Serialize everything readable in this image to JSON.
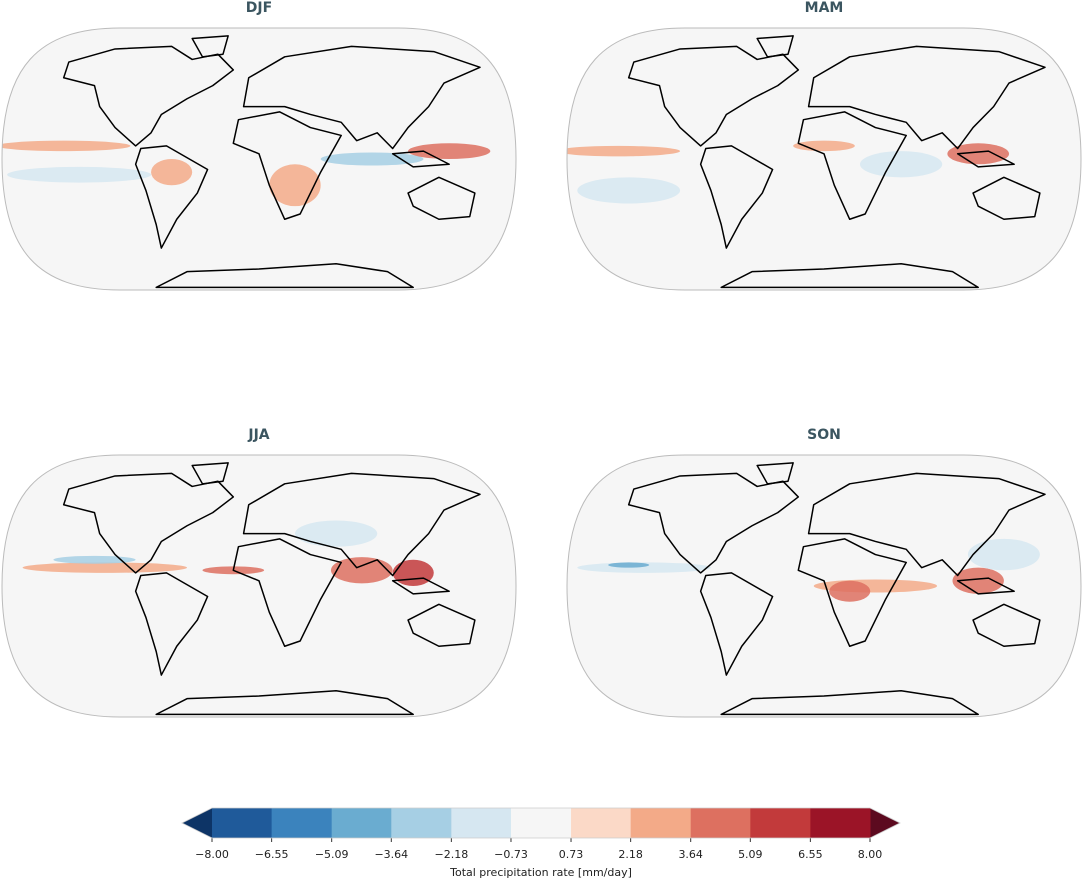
{
  "panels": [
    {
      "title": "DJF"
    },
    {
      "title": "MAM"
    },
    {
      "title": "JJA"
    },
    {
      "title": "SON"
    }
  ],
  "colorbar": {
    "label": "Total precipitation rate [mm/day]",
    "ticks": [
      {
        "value": -8,
        "label": "−8.00"
      },
      {
        "value": -6.55,
        "label": "−6.55"
      },
      {
        "value": -5.09,
        "label": "−5.09"
      },
      {
        "value": -3.64,
        "label": "−3.64"
      },
      {
        "value": -2.18,
        "label": "−2.18"
      },
      {
        "value": -0.73,
        "label": "−0.73"
      },
      0.73,
      2.18,
      3.64,
      5.09,
      6.55,
      {
        "value": 8,
        "label": "8.00"
      }
    ],
    "colors": [
      "#1f5a9a",
      "#3b83bd",
      "#6aacd0",
      "#a6cfe4",
      "#d6e7f1",
      "#f6f6f6",
      "#fbd9c7",
      "#f3aa88",
      "#dd7060",
      "#c23a3b",
      "#9b1427"
    ],
    "under_color": "#0d3466",
    "over_color": "#5c0a1f"
  }
}
